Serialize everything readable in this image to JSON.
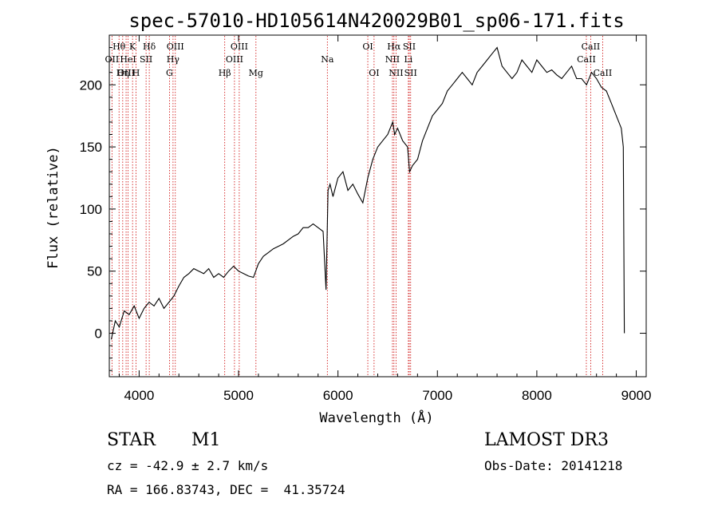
{
  "chart_data": {
    "type": "line",
    "title": "spec-57010-HD105614N420029B01_sp06-171.fits",
    "xlabel": "Wavelength (Å)",
    "ylabel": "Flux (relative)",
    "xlim": [
      3700,
      9100
    ],
    "ylim": [
      -35,
      240
    ],
    "xticks": [
      4000,
      5000,
      6000,
      7000,
      8000,
      9000
    ],
    "yticks": [
      0,
      50,
      100,
      150,
      200
    ],
    "line_color": "#000000",
    "marker_color": "#cc0000",
    "series": [
      {
        "x": [
          3720,
          3760,
          3800,
          3850,
          3900,
          3950,
          4000,
          4050,
          4100,
          4150,
          4200,
          4250,
          4300,
          4350,
          4400,
          4450,
          4500,
          4550,
          4600,
          4650,
          4700,
          4750,
          4800,
          4850,
          4900,
          4950,
          5000,
          5050,
          5100,
          5150,
          5200,
          5250,
          5300,
          5350,
          5400,
          5450,
          5500,
          5550,
          5600,
          5650,
          5700,
          5750,
          5800,
          5850,
          5880,
          5900,
          5920,
          5950,
          6000,
          6050,
          6100,
          6150,
          6200,
          6250,
          6300,
          6350,
          6400,
          6450,
          6500,
          6550,
          6570,
          6600,
          6650,
          6700,
          6720,
          6750,
          6800,
          6850,
          6900,
          6950,
          7000,
          7050,
          7100,
          7150,
          7200,
          7250,
          7300,
          7350,
          7400,
          7450,
          7500,
          7550,
          7600,
          7650,
          7700,
          7750,
          7800,
          7850,
          7900,
          7950,
          8000,
          8050,
          8100,
          8150,
          8200,
          8250,
          8300,
          8350,
          8400,
          8450,
          8500,
          8550,
          8600,
          8650,
          8700,
          8750,
          8800,
          8850,
          8870,
          8880
        ],
        "y": [
          -5,
          10,
          5,
          18,
          15,
          22,
          12,
          20,
          25,
          22,
          28,
          20,
          25,
          30,
          38,
          45,
          48,
          52,
          50,
          48,
          52,
          45,
          48,
          45,
          50,
          54,
          50,
          48,
          46,
          45,
          56,
          62,
          65,
          68,
          70,
          72,
          75,
          78,
          80,
          85,
          85,
          88,
          85,
          82,
          35,
          115,
          120,
          110,
          125,
          130,
          115,
          120,
          112,
          105,
          125,
          140,
          150,
          155,
          160,
          170,
          160,
          165,
          155,
          150,
          130,
          135,
          140,
          155,
          165,
          175,
          180,
          185,
          195,
          200,
          205,
          210,
          205,
          200,
          210,
          215,
          220,
          225,
          230,
          215,
          210,
          205,
          210,
          220,
          215,
          210,
          220,
          215,
          210,
          212,
          208,
          205,
          210,
          215,
          205,
          205,
          200,
          210,
          205,
          198,
          195,
          185,
          175,
          165,
          150,
          0
        ]
      }
    ],
    "spectral_lines": [
      {
        "name": "Hθ",
        "wl": 3798,
        "row": 1
      },
      {
        "name": "OII",
        "wl": 3727,
        "row": 2
      },
      {
        "name": "OIII",
        "wl": 3869,
        "row": 3
      },
      {
        "name": "K",
        "wl": 3934,
        "row": 1
      },
      {
        "name": "HeI",
        "wl": 3889,
        "row": 2
      },
      {
        "name": "Hη",
        "wl": 3835,
        "row": 3
      },
      {
        "name": "SII",
        "wl": 4070,
        "row": 2
      },
      {
        "name": "H",
        "wl": 3969,
        "row": 3
      },
      {
        "name": "Hδ",
        "wl": 4102,
        "row": 1
      },
      {
        "name": "OIII",
        "wl": 4364,
        "row": 1
      },
      {
        "name": "Hγ",
        "wl": 4341,
        "row": 2
      },
      {
        "name": "G",
        "wl": 4305,
        "row": 3
      },
      {
        "name": "Hβ",
        "wl": 4861,
        "row": 3
      },
      {
        "name": "OIII",
        "wl": 5007,
        "row": 1
      },
      {
        "name": "OIII",
        "wl": 4959,
        "row": 2
      },
      {
        "name": "Mg",
        "wl": 5175,
        "row": 3
      },
      {
        "name": "Na",
        "wl": 5893,
        "row": 2
      },
      {
        "name": "OI",
        "wl": 6300,
        "row": 1
      },
      {
        "name": "OI",
        "wl": 6363,
        "row": 3
      },
      {
        "name": "Hα",
        "wl": 6563,
        "row": 1
      },
      {
        "name": "NII",
        "wl": 6548,
        "row": 2
      },
      {
        "name": "NII",
        "wl": 6584,
        "row": 3
      },
      {
        "name": "SII",
        "wl": 6717,
        "row": 1
      },
      {
        "name": "Li",
        "wl": 6708,
        "row": 2
      },
      {
        "name": "SII",
        "wl": 6731,
        "row": 3
      },
      {
        "name": "CaII",
        "wl": 8542,
        "row": 1
      },
      {
        "name": "CaII",
        "wl": 8498,
        "row": 2
      },
      {
        "name": "CaII",
        "wl": 8662,
        "row": 3
      }
    ]
  },
  "info": {
    "class": "STAR",
    "subclass": "M1",
    "survey": "LAMOST DR3",
    "cz": "cz = -42.9 ± 2.7 km/s",
    "obs_date": "Obs-Date: 20141218",
    "coords": "RA = 166.83743, DEC =  41.35724"
  }
}
